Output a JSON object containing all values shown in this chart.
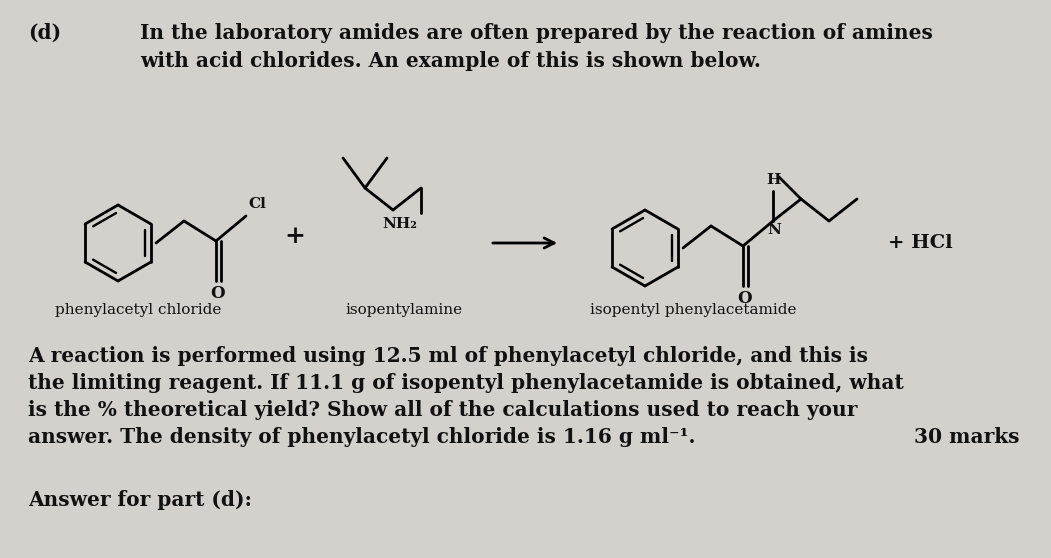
{
  "background_color": "#d4d0cb",
  "title_part": "(d)",
  "line1": "In the laboratory amides are often prepared by the reaction of amines",
  "line2": "with acid chlorides. An example of this is shown below.",
  "label1": "phenylacetyl chloride",
  "label2": "isopentylamine",
  "label3": "isopentyl phenylacetamide",
  "plus_sign": "+",
  "hcl": "+ HCl",
  "body_line1": "A reaction is performed using 12.5 ml of phenylacetyl chloride, and this is",
  "body_line2": "the limiting reagent. If 11.1 g of isopentyl phenylacetamide is obtained, what",
  "body_line3": "is the % theoretical yield? Show all of the calculations used to reach your",
  "body_line4": "answer. The density of phenylacetyl chloride is 1.16 g ml⁻¹.",
  "marks": "30 marks",
  "answer_label": "Answer for part (d):",
  "text_color": "#111111",
  "font_size_header": 14.5,
  "font_size_body": 14.5,
  "font_size_label": 11.0,
  "struct_lw": 2.0
}
